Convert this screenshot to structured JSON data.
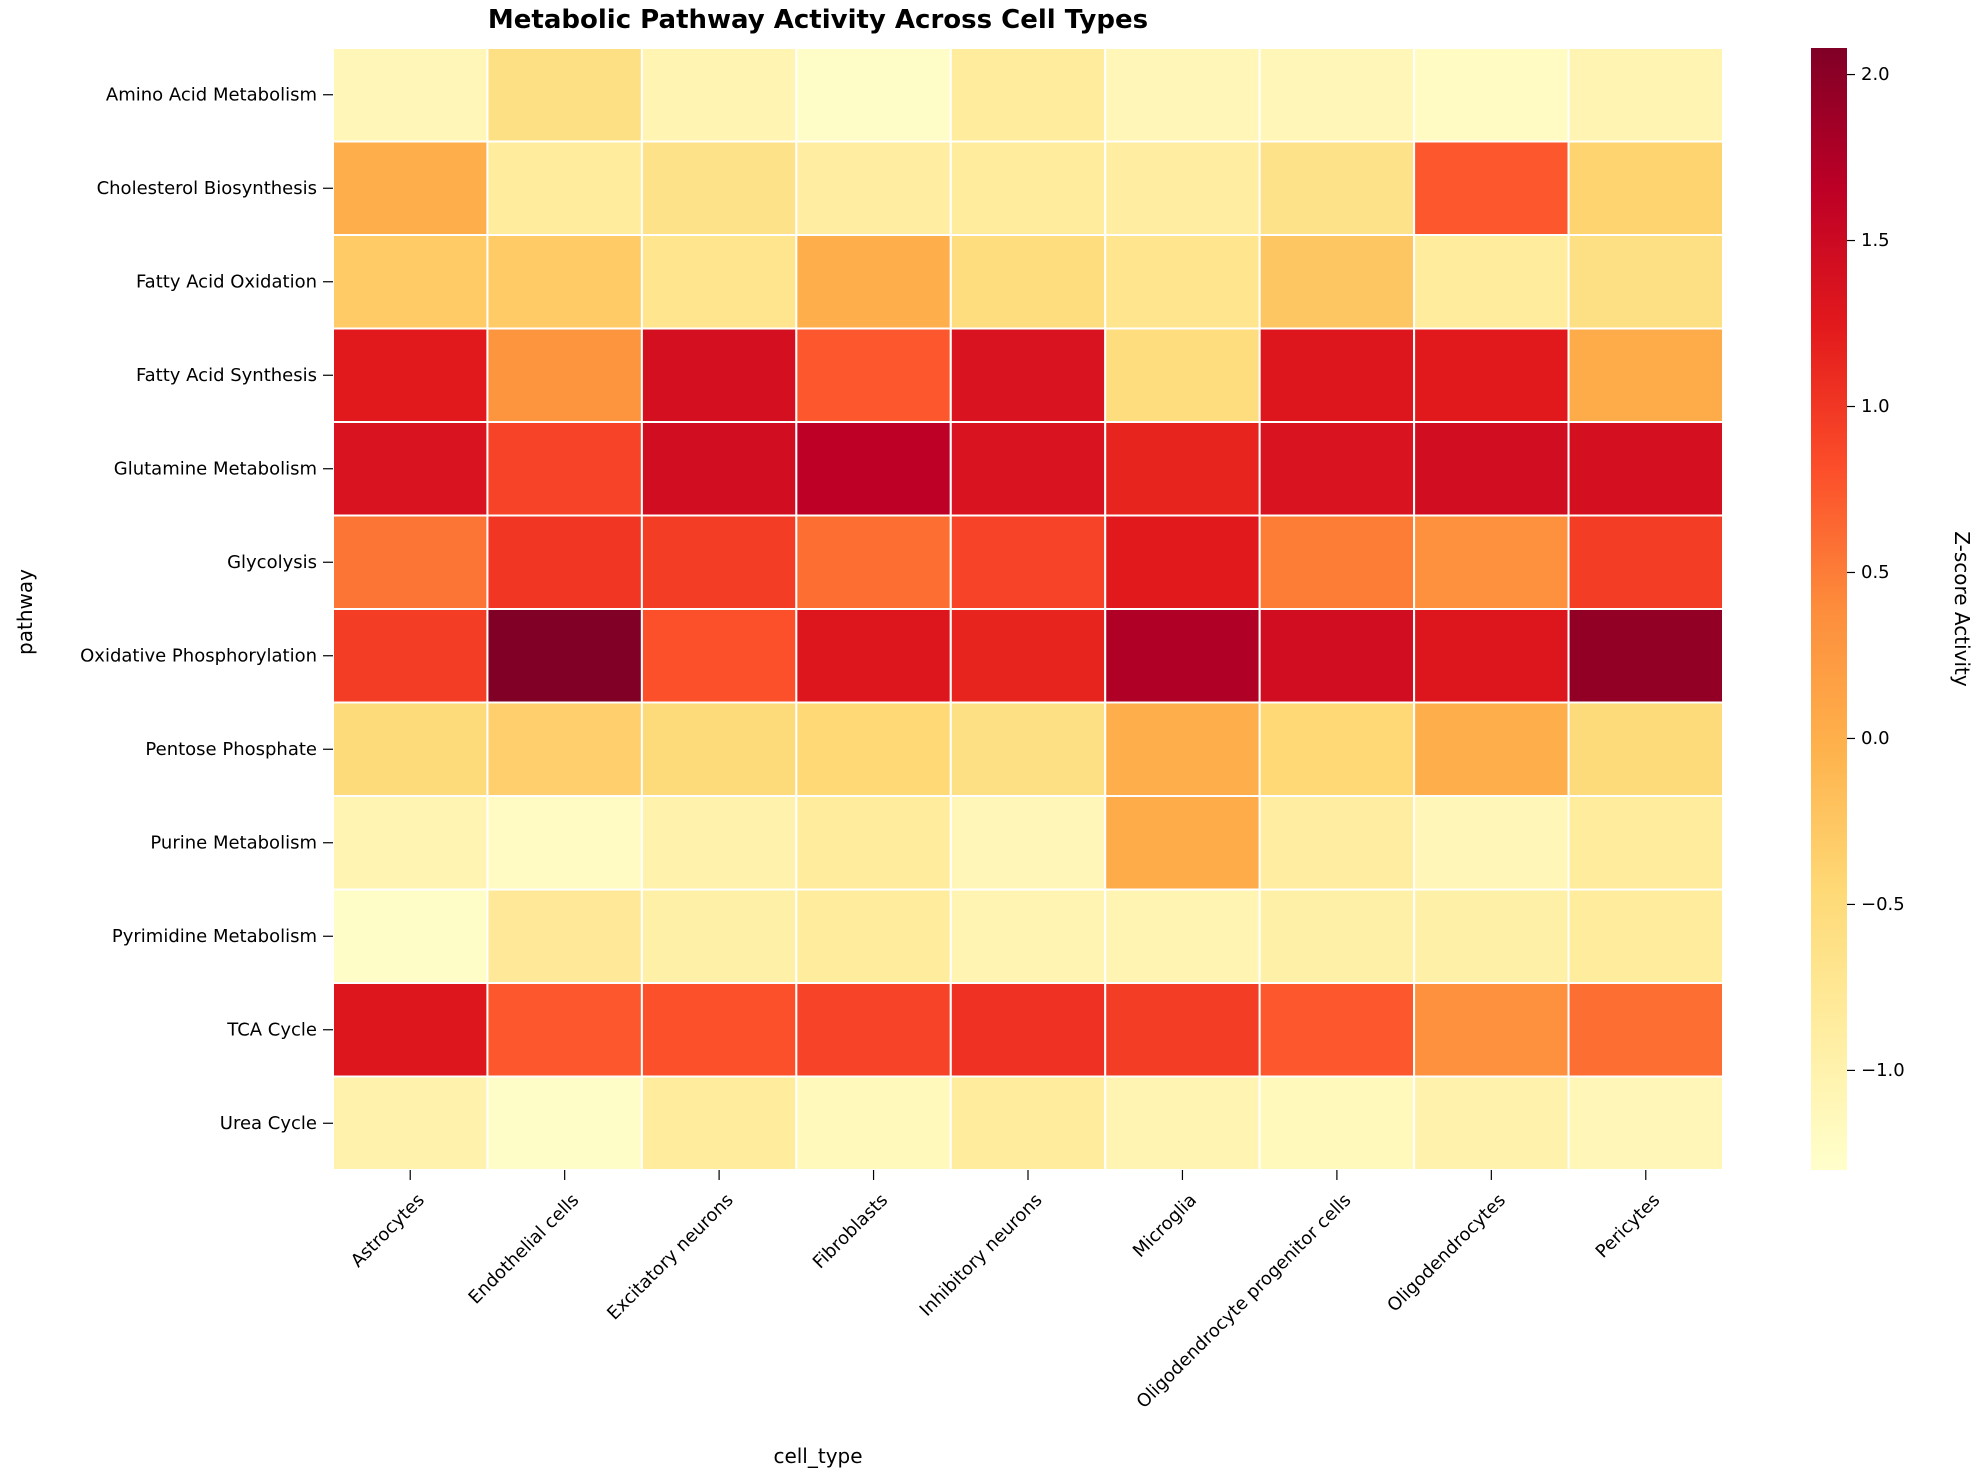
{
  "chart_data": {
    "type": "heatmap",
    "title": "Metabolic Pathway Activity Across Cell Types",
    "xlabel": "cell_type",
    "ylabel": "pathway",
    "colorbar_label": "Z-score Activity",
    "colormap": "YlOrRd",
    "value_range": [
      -1.3,
      2.08
    ],
    "colorbar_ticks": [
      "2.0",
      "1.5",
      "1.0",
      "0.5",
      "0.0",
      "−0.5",
      "−1.0"
    ],
    "colorbar_tick_values": [
      2.0,
      1.5,
      1.0,
      0.5,
      0.0,
      -0.5,
      -1.0
    ],
    "columns": [
      "Astrocytes",
      "Endothelial cells",
      "Excitatory neurons",
      "Fibroblasts",
      "Inhibitory neurons",
      "Microglia",
      "Oligodendrocyte progenitor cells",
      "Oligodendrocytes",
      "Pericytes"
    ],
    "rows": [
      "Amino Acid Metabolism",
      "Cholesterol Biosynthesis",
      "Fatty Acid Oxidation",
      "Fatty Acid Synthesis",
      "Glutamine Metabolism",
      "Glycolysis",
      "Oxidative Phosphorylation",
      "Pentose Phosphate",
      "Purine Metabolism",
      "Pyrimidine Metabolism",
      "TCA Cycle",
      "Urea Cycle"
    ],
    "values": [
      [
        -1.1,
        -0.6,
        -1.05,
        -1.25,
        -0.85,
        -1.1,
        -1.1,
        -1.2,
        -1.05
      ],
      [
        0.0,
        -0.85,
        -0.65,
        -0.9,
        -0.85,
        -0.9,
        -0.65,
        0.75,
        -0.4
      ],
      [
        -0.3,
        -0.3,
        -0.7,
        0.0,
        -0.55,
        -0.7,
        -0.25,
        -0.85,
        -0.6
      ],
      [
        1.25,
        0.3,
        1.4,
        0.75,
        1.35,
        -0.55,
        1.3,
        1.25,
        0.05
      ],
      [
        1.35,
        0.9,
        1.45,
        1.65,
        1.35,
        1.15,
        1.35,
        1.45,
        1.4
      ],
      [
        0.55,
        1.0,
        0.95,
        0.6,
        0.9,
        1.25,
        0.5,
        0.35,
        0.95
      ],
      [
        0.95,
        2.08,
        0.8,
        1.3,
        1.15,
        1.75,
        1.45,
        1.3,
        1.95
      ],
      [
        -0.5,
        -0.35,
        -0.5,
        -0.45,
        -0.6,
        0.0,
        -0.45,
        0.0,
        -0.5
      ],
      [
        -1.05,
        -1.2,
        -1.0,
        -0.85,
        -1.1,
        0.05,
        -0.9,
        -1.1,
        -0.85
      ],
      [
        -1.25,
        -0.8,
        -0.95,
        -0.85,
        -1.05,
        -1.05,
        -0.95,
        -0.95,
        -0.85
      ],
      [
        1.3,
        0.75,
        0.8,
        0.9,
        1.05,
        0.95,
        0.75,
        0.35,
        0.6
      ],
      [
        -1.0,
        -1.25,
        -0.85,
        -1.15,
        -0.85,
        -1.05,
        -1.15,
        -1.0,
        -1.1
      ]
    ]
  }
}
